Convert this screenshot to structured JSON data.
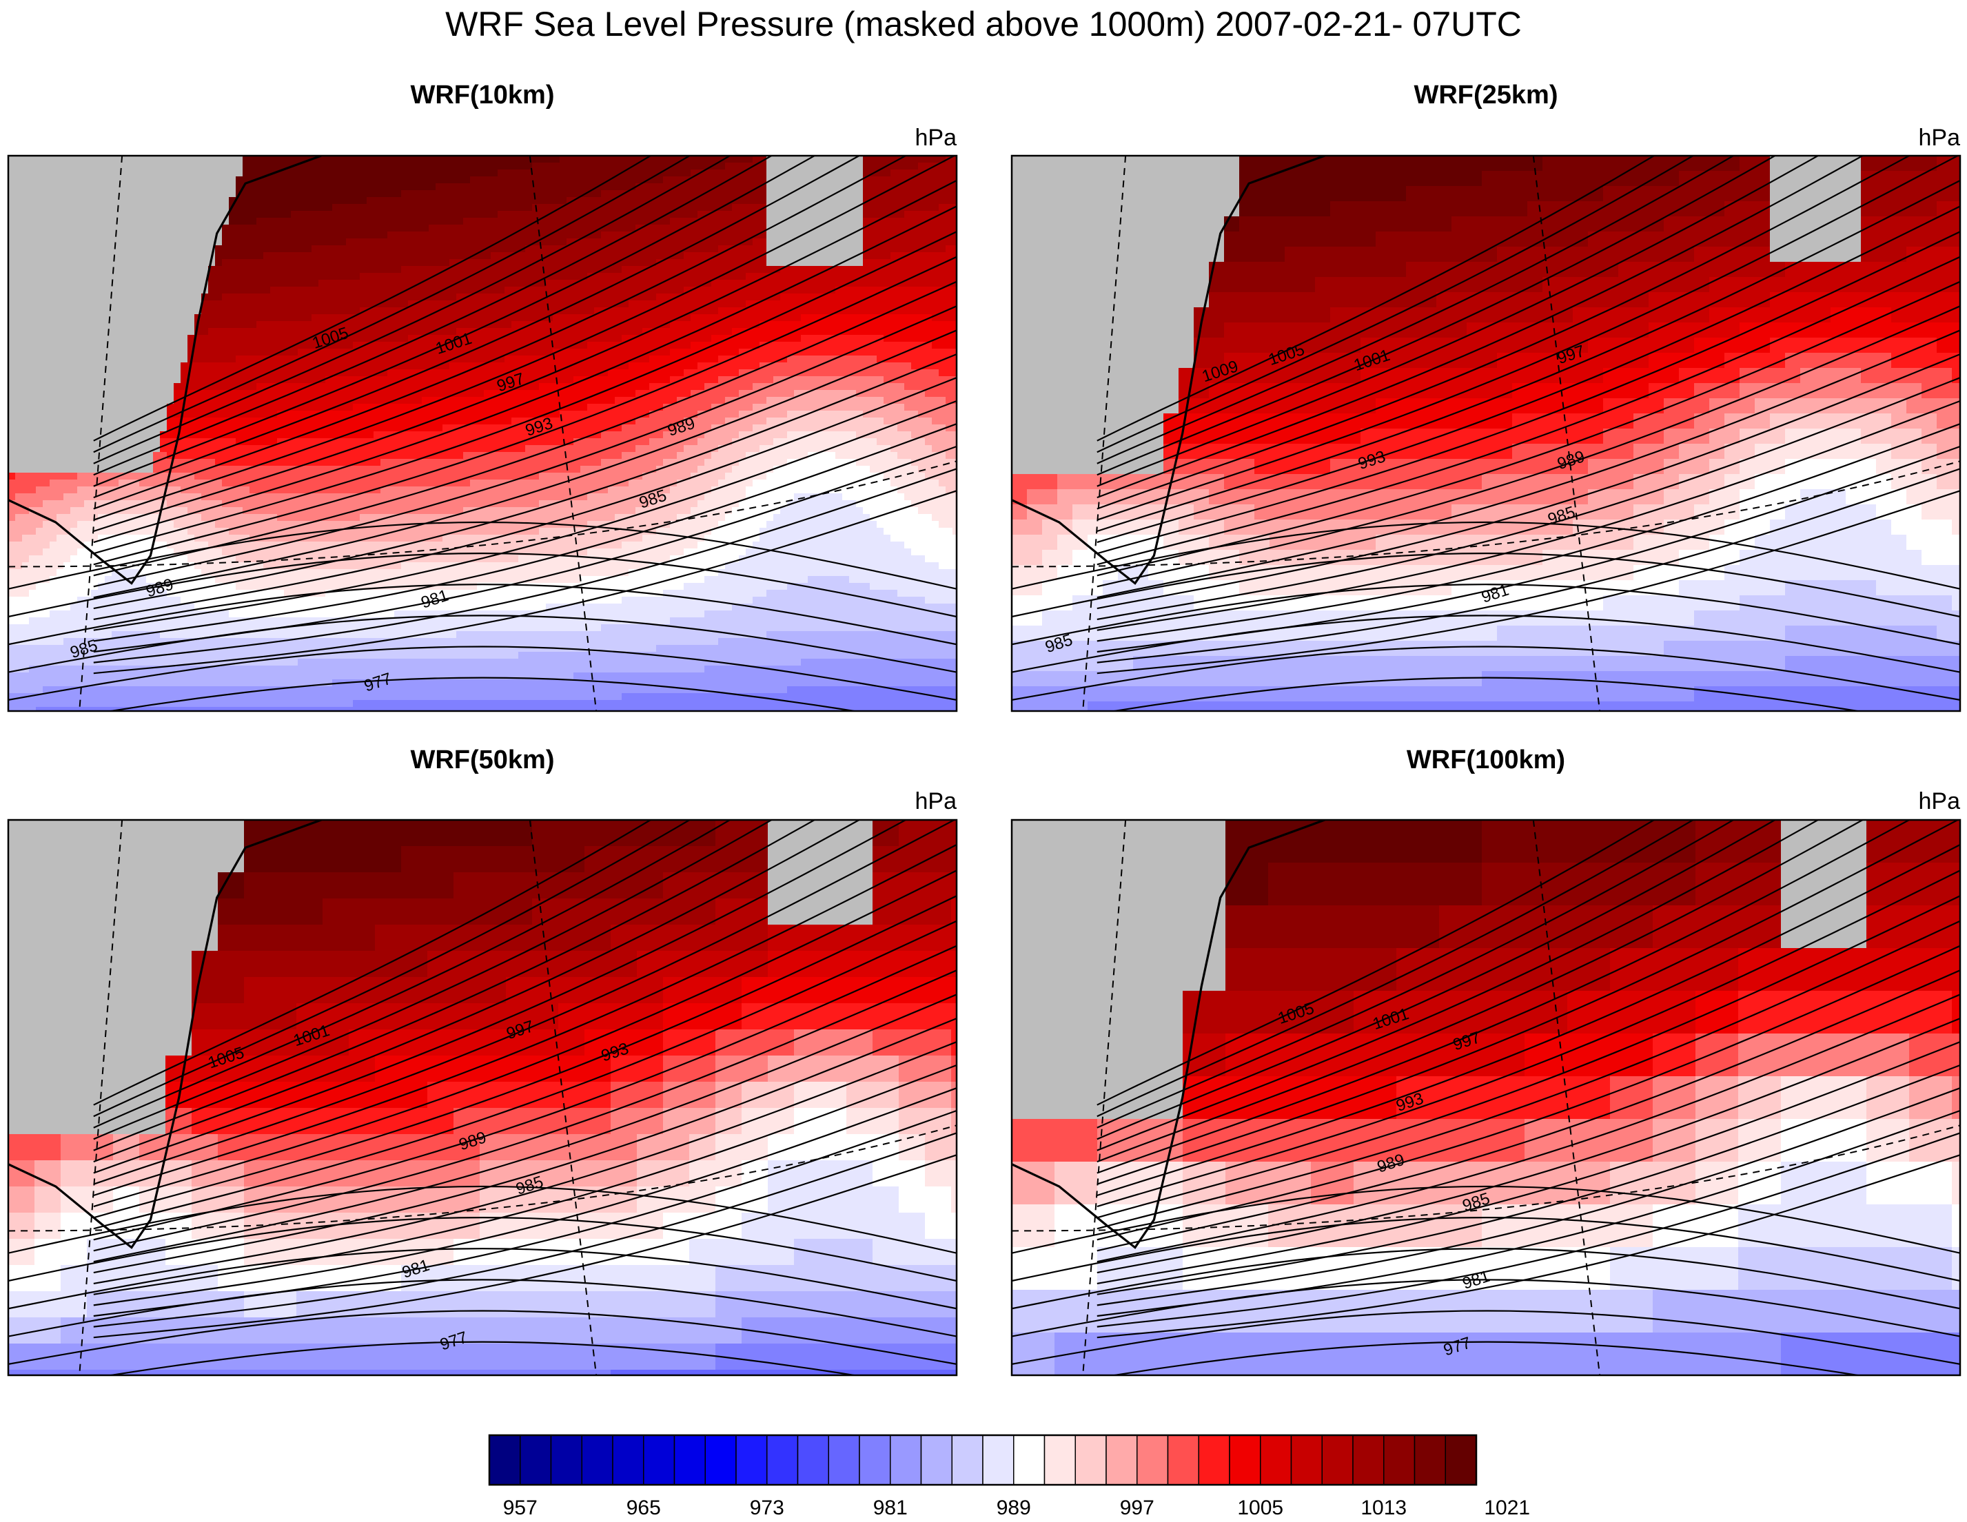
{
  "figure": {
    "title": "WRF Sea Level Pressure (masked above 1000m) 2007-02-21- 07UTC"
  },
  "panels": [
    {
      "title": "WRF(10km)",
      "unit": "hPa",
      "contour_labels": [
        "1005",
        "1001",
        "997",
        "993",
        "989",
        "985",
        "989",
        "981",
        "985",
        "977"
      ]
    },
    {
      "title": "WRF(25km)",
      "unit": "hPa",
      "contour_labels": [
        "1009",
        "1005",
        "1001",
        "997",
        "993",
        "989",
        "985",
        "981",
        "985"
      ]
    },
    {
      "title": "WRF(50km)",
      "unit": "hPa",
      "contour_labels": [
        "1005",
        "1001",
        "997",
        "993",
        "989",
        "985",
        "981",
        "977"
      ]
    },
    {
      "title": "WRF(100km)",
      "unit": "hPa",
      "contour_labels": [
        "1005",
        "1001",
        "997",
        "993",
        "989",
        "985",
        "981",
        "977"
      ]
    }
  ],
  "colorbar": {
    "min": 955,
    "max": 1027,
    "interval": 2,
    "tick_labels": [
      "957",
      "965",
      "973",
      "981",
      "989",
      "997",
      "1005",
      "1013",
      "1021"
    ],
    "colors": [
      "#000080",
      "#000096",
      "#0000a6",
      "#0000b8",
      "#0000c8",
      "#0000d8",
      "#0000e8",
      "#0000f8",
      "#1a1aff",
      "#3333ff",
      "#4d4dff",
      "#6666ff",
      "#8080ff",
      "#9999ff",
      "#b3b3ff",
      "#ccccff",
      "#e6e6ff",
      "#ffffff",
      "#ffe6e6",
      "#ffcccc",
      "#ffaaaa",
      "#ff8080",
      "#ff5050",
      "#ff1a1a",
      "#f00000",
      "#dc0000",
      "#c80000",
      "#b40000",
      "#a00000",
      "#8c0000",
      "#780000",
      "#640000"
    ]
  },
  "colors": {
    "land": "#bdbdbd",
    "high": "#e00000",
    "low": "#0000e0",
    "neutral": "#ffffff",
    "contour": "#000000"
  }
}
